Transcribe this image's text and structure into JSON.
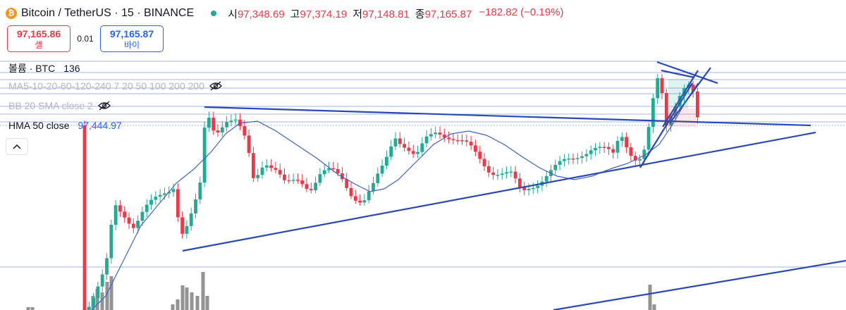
{
  "header": {
    "coin_glyph": "₿",
    "symbol": "Bitcoin / TetherUS · 15 · BINANCE",
    "ohlc": {
      "open_label": "시",
      "open": "97,348.69",
      "high_label": "고",
      "high": "97,374.19",
      "low_label": "저",
      "low": "97,148.81",
      "close_label": "종",
      "close": "97,165.87",
      "change": "−182.82 (−0.19%)"
    },
    "status_color": "#22ab94"
  },
  "trade": {
    "sell_price": "97,165.86",
    "sell_label": "셀",
    "spread": "0.01",
    "buy_price": "97,165.87",
    "buy_label": "바이"
  },
  "indicators": {
    "volume_name": "볼륨 · BTC",
    "volume_value": "136",
    "ma_name": "MA5-10-20-60-120-240 7 20 50 100 200 200",
    "bb_name": "BB 20 SMA close 2",
    "hma_name": "HMA 50 close",
    "hma_value": "97,444.97"
  },
  "colors": {
    "up": "#22ab94",
    "down": "#f23645",
    "trendline": "#2a49b5",
    "hma": "#3f62c8",
    "hline": "#a6b4e0",
    "volume": "#808080"
  },
  "icons": {
    "eye_off": "eye-off-icon",
    "collapse": "chevron-up-icon",
    "coin": "bitcoin-icon"
  }
}
